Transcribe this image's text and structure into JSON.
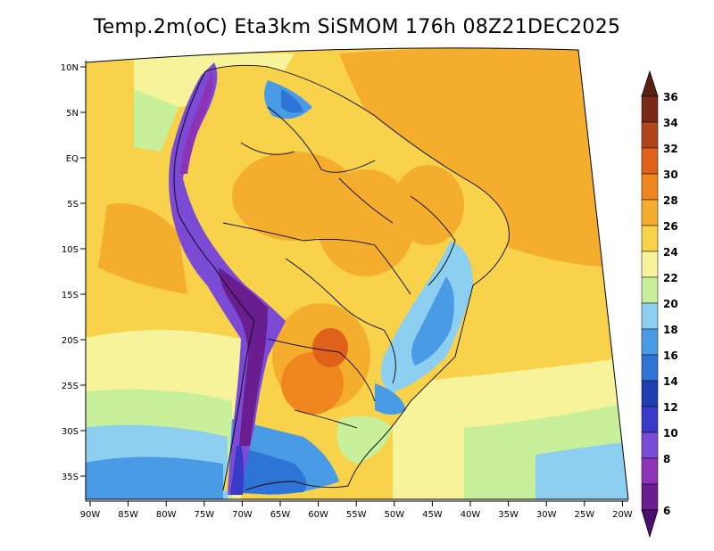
{
  "title": "Temp.2m(oC) Eta3km SiSMOM 176h 08Z21DEC2025",
  "lat_ticks": [
    "10N",
    "5N",
    "EQ",
    "5S",
    "10S",
    "15S",
    "20S",
    "25S",
    "30S",
    "35S"
  ],
  "lon_ticks": [
    "90W",
    "85W",
    "80W",
    "75W",
    "70W",
    "65W",
    "60W",
    "55W",
    "50W",
    "45W",
    "40W",
    "35W",
    "30W",
    "25W",
    "20W"
  ],
  "colorbar": {
    "labels": [
      "6",
      "8",
      "10",
      "12",
      "14",
      "16",
      "18",
      "20",
      "22",
      "24",
      "26",
      "28",
      "30",
      "32",
      "34",
      "36"
    ],
    "colors": [
      "#6a1d8f",
      "#8e32b8",
      "#7b4bd6",
      "#3a3ac8",
      "#1f3fb0",
      "#2e74d6",
      "#4a9be6",
      "#8dcff0",
      "#c8ef9a",
      "#f7f39a",
      "#f8d24a",
      "#f5ad2e",
      "#f0861e",
      "#e0621a",
      "#b3451a",
      "#7a2a16"
    ],
    "low_color": "#4a1070",
    "high_color": "#5a2012"
  }
}
